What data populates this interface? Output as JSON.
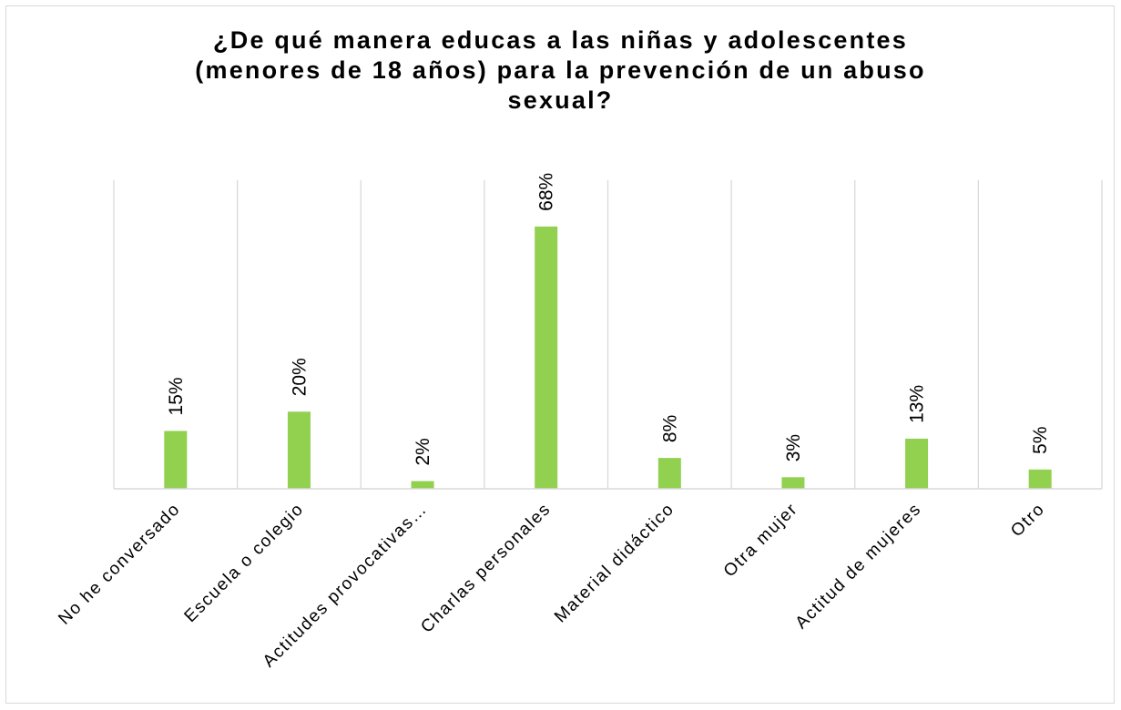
{
  "chart_data": {
    "type": "bar",
    "title_lines": [
      "¿De qué manera educas a las niñas y adolescentes",
      "(menores de 18 años) para la prevención de un abuso",
      "sexual?"
    ],
    "categories": [
      "No he conversado",
      "Escuela o colegio",
      "Actitudes provocativas…",
      "Charlas personales",
      "Material didáctico",
      "Otra mujer",
      "Actitud de mujeres",
      "Otro"
    ],
    "values": [
      15,
      20,
      2,
      68,
      8,
      3,
      13,
      5
    ],
    "data_labels": [
      "15%",
      "20%",
      "2%",
      "68%",
      "8%",
      "3%",
      "13%",
      "5%"
    ],
    "unit": "%",
    "ylim": [
      0,
      80
    ],
    "bar_color": "#92d050",
    "gridlines": "vertical category separators",
    "legend": "none"
  }
}
